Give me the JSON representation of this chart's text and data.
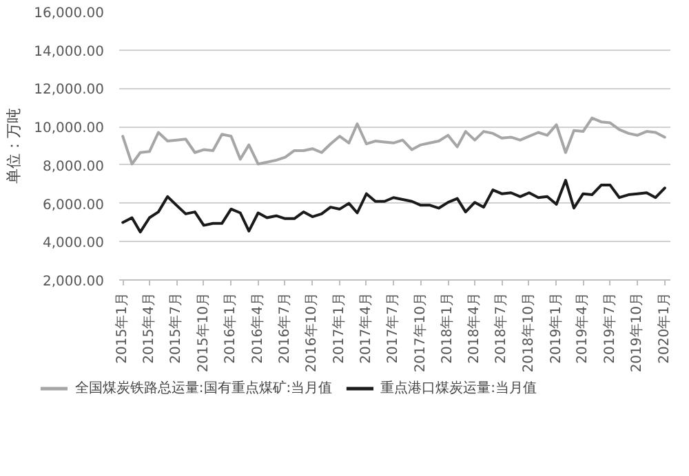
{
  "chart_data": {
    "type": "line",
    "ylabel": "单位：万吨",
    "x": [
      "2015-01",
      "2015-02",
      "2015-03",
      "2015-04",
      "2015-05",
      "2015-06",
      "2015-07",
      "2015-08",
      "2015-09",
      "2015-10",
      "2015-11",
      "2015-12",
      "2016-01",
      "2016-02",
      "2016-03",
      "2016-04",
      "2016-05",
      "2016-06",
      "2016-07",
      "2016-08",
      "2016-09",
      "2016-10",
      "2016-11",
      "2016-12",
      "2017-01",
      "2017-02",
      "2017-03",
      "2017-04",
      "2017-05",
      "2017-06",
      "2017-07",
      "2017-08",
      "2017-09",
      "2017-10",
      "2017-11",
      "2017-12",
      "2018-01",
      "2018-02",
      "2018-03",
      "2018-04",
      "2018-05",
      "2018-06",
      "2018-07",
      "2018-08",
      "2018-09",
      "2018-10",
      "2018-11",
      "2018-12",
      "2019-01",
      "2019-02",
      "2019-03",
      "2019-04",
      "2019-05",
      "2019-06",
      "2019-07",
      "2019-08",
      "2019-09",
      "2019-10",
      "2019-11",
      "2019-12",
      "2020-01"
    ],
    "series": [
      {
        "name": "全国煤炭铁路总运量:国有重点煤矿:当月值",
        "color": "#a6a6a6",
        "values": [
          9500,
          8050,
          8650,
          8700,
          9700,
          9250,
          9300,
          9350,
          8650,
          8800,
          8750,
          9600,
          9500,
          8300,
          9050,
          8050,
          8150,
          8250,
          8400,
          8750,
          8750,
          8850,
          8650,
          9100,
          9500,
          9150,
          10150,
          9100,
          9250,
          9200,
          9150,
          9300,
          8800,
          9050,
          9150,
          9250,
          9550,
          8950,
          9750,
          9300,
          9750,
          9650,
          9400,
          9450,
          9300,
          9500,
          9700,
          9550,
          10100,
          8650,
          9800,
          9750,
          10450,
          10250,
          10200,
          9850,
          9650,
          9550,
          9750,
          9700,
          9450
        ]
      },
      {
        "name": "重点港口煤炭运量:当月值",
        "color": "#1a1a1a",
        "values": [
          5000,
          5250,
          4500,
          5250,
          5550,
          6350,
          5900,
          5450,
          5550,
          4850,
          4950,
          4950,
          5700,
          5500,
          4550,
          5500,
          5250,
          5350,
          5200,
          5200,
          5550,
          5300,
          5450,
          5800,
          5700,
          6000,
          5500,
          6500,
          6100,
          6100,
          6300,
          6200,
          6100,
          5900,
          5900,
          5750,
          6050,
          6250,
          5550,
          6050,
          5800,
          6700,
          6500,
          6550,
          6350,
          6550,
          6300,
          6350,
          5950,
          7200,
          5750,
          6500,
          6450,
          6950,
          6950,
          6300,
          6450,
          6500,
          6550,
          6300,
          6800
        ]
      }
    ],
    "ylim": [
      2000,
      16000
    ],
    "yticks": [
      {
        "value": 2000,
        "label": "2,000.00"
      },
      {
        "value": 4000,
        "label": "4,000.00"
      },
      {
        "value": 6000,
        "label": "6,000.00"
      },
      {
        "value": 8000,
        "label": "8,000.00"
      },
      {
        "value": 10000,
        "label": "10,000.00"
      },
      {
        "value": 12000,
        "label": "12,000.00"
      },
      {
        "value": 14000,
        "label": "14,000.00"
      },
      {
        "value": 16000,
        "label": "16,000.00"
      }
    ],
    "xlim": [
      "2014-12-20",
      "2020-01-20"
    ],
    "xticks": [
      {
        "value": "2015-01",
        "label": "2015年1月"
      },
      {
        "value": "2015-04",
        "label": "2015年4月"
      },
      {
        "value": "2015-07",
        "label": "2015年7月"
      },
      {
        "value": "2015-10",
        "label": "2015年10月"
      },
      {
        "value": "2016-01",
        "label": "2016年1月"
      },
      {
        "value": "2016-04",
        "label": "2016年4月"
      },
      {
        "value": "2016-07",
        "label": "2016年7月"
      },
      {
        "value": "2016-10",
        "label": "2016年10月"
      },
      {
        "value": "2017-01",
        "label": "2017年1月"
      },
      {
        "value": "2017-04",
        "label": "2017年4月"
      },
      {
        "value": "2017-07",
        "label": "2017年7月"
      },
      {
        "value": "2017-10",
        "label": "2017年10月"
      },
      {
        "value": "2018-01",
        "label": "2018年1月"
      },
      {
        "value": "2018-04",
        "label": "2018年4月"
      },
      {
        "value": "2018-07",
        "label": "2018年7月"
      },
      {
        "value": "2018-10",
        "label": "2018年10月"
      },
      {
        "value": "2019-01",
        "label": "2019年1月"
      },
      {
        "value": "2019-04",
        "label": "2019年4月"
      },
      {
        "value": "2019-07",
        "label": "2019年7月"
      },
      {
        "value": "2019-10",
        "label": "2019年10月"
      },
      {
        "value": "2020-01",
        "label": "2020年1月"
      }
    ],
    "grid": "y",
    "legend": "bottom",
    "marker": "none",
    "line_style": "solid"
  }
}
